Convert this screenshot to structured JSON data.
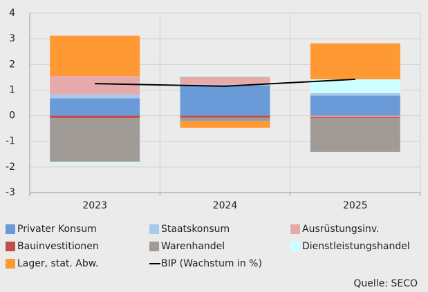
{
  "chart_data": {
    "type": "bar",
    "stacked": true,
    "categories": [
      "2023",
      "2024",
      "2025"
    ],
    "series": [
      {
        "name": "Privater Konsum",
        "color": "#6a9bd8",
        "values": [
          0.68,
          1.18,
          0.78
        ]
      },
      {
        "name": "Staatskonsum",
        "color": "#a9c9ec",
        "values": [
          0.15,
          0.03,
          0.1
        ]
      },
      {
        "name": "Ausrüstungsinv.",
        "color": "#e6aaaa",
        "values": [
          0.72,
          0.32,
          -0.05
        ]
      },
      {
        "name": "Bauinvestitionen",
        "color": "#c0504d",
        "values": [
          -0.1,
          -0.08,
          -0.05
        ]
      },
      {
        "name": "Warenhandel",
        "color": "#a19b98",
        "values": [
          -1.7,
          -0.14,
          -1.31
        ]
      },
      {
        "name": "Dienstleistungshandel",
        "color": "#ccffff",
        "values": [
          -0.05,
          0.07,
          0.54
        ]
      },
      {
        "name": "Lager, stat. Abw.",
        "color": "#ff9933",
        "values": [
          1.57,
          -0.25,
          1.4
        ]
      },
      {
        "name": "BIP (Wachstum in %)",
        "type": "line",
        "color": "#000000",
        "values": [
          1.25,
          1.15,
          1.42
        ]
      }
    ],
    "ylim": [
      -3,
      4
    ],
    "yticks": [
      -3,
      -2,
      -1,
      0,
      1,
      2,
      3,
      4
    ],
    "grid": true,
    "source": "Quelle: SECO"
  }
}
